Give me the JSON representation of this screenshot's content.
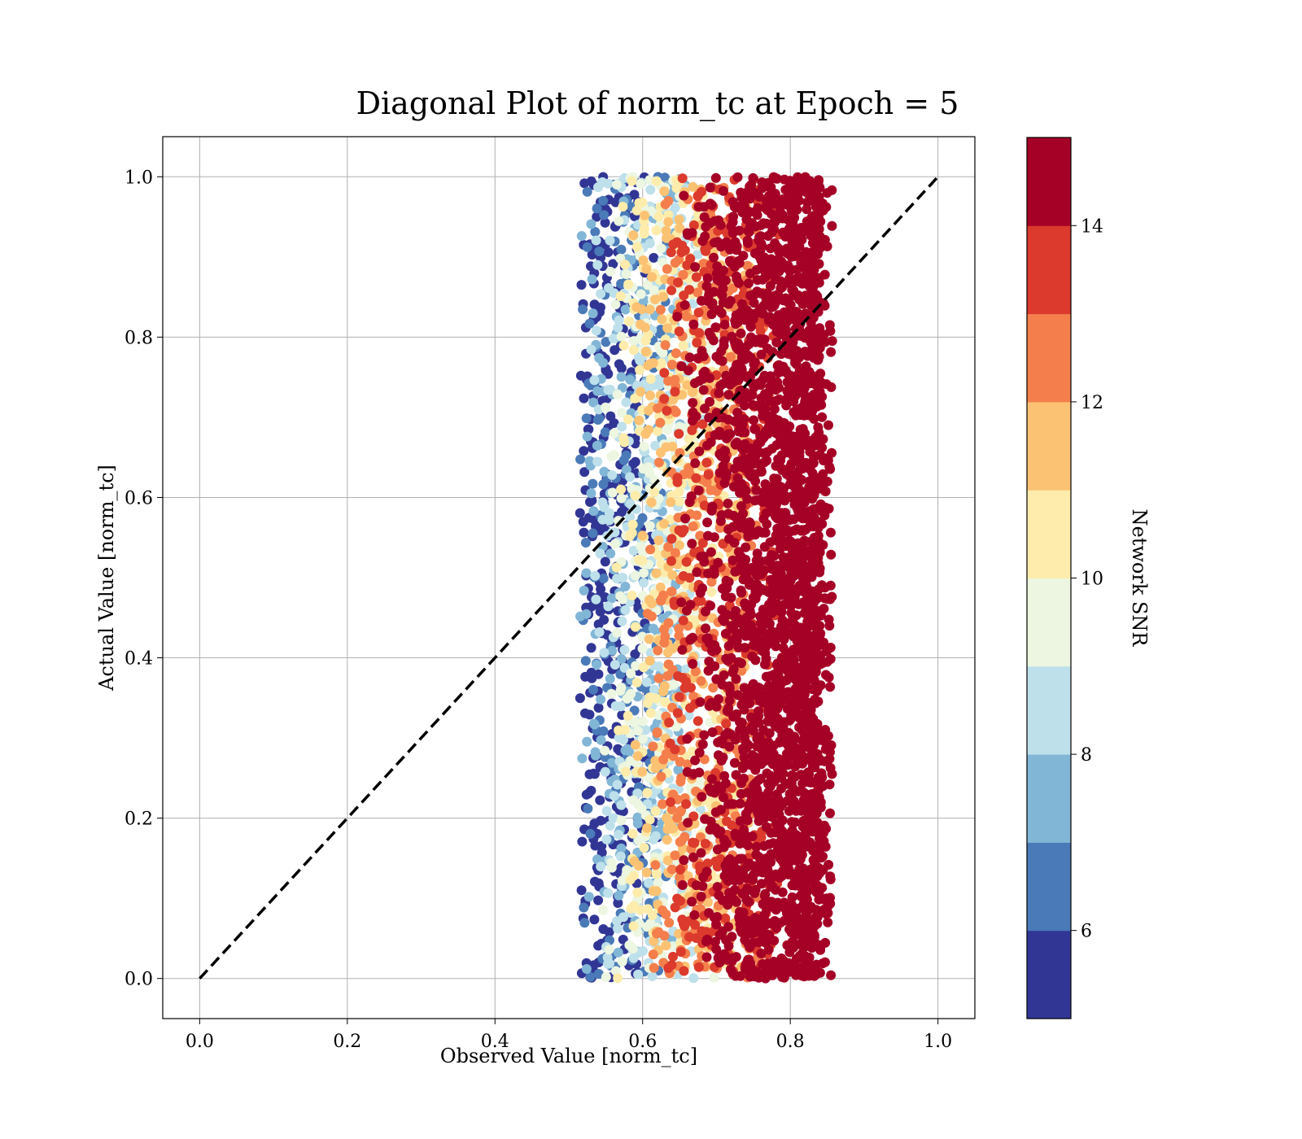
{
  "chart_data": {
    "type": "scatter",
    "title": "Diagonal Plot of norm_tc at Epoch = 5",
    "xlabel": "Observed Value [norm_tc]",
    "ylabel": "Actual Value [norm_tc]",
    "xlim": [
      -0.05,
      1.05
    ],
    "ylim": [
      -0.05,
      1.05
    ],
    "xticks": [
      "0.0",
      "0.2",
      "0.4",
      "0.6",
      "0.8",
      "1.0"
    ],
    "yticks": [
      "0.0",
      "0.2",
      "0.4",
      "0.6",
      "0.8",
      "1.0"
    ],
    "grid": true,
    "reference_line": {
      "x": [
        0,
        1
      ],
      "y": [
        0,
        1
      ],
      "style": "dashed",
      "color": "#000000"
    },
    "scatter_extent": {
      "x": [
        0.51,
        0.86
      ],
      "y": [
        0.0,
        1.0
      ]
    },
    "colorbar": {
      "label": "Network SNR",
      "range": [
        5,
        15
      ],
      "ticks": [
        "6",
        "8",
        "10",
        "12",
        "14"
      ],
      "levels": [
        5,
        6,
        7,
        8,
        9,
        10,
        11,
        12,
        13,
        14,
        15
      ],
      "colors": [
        "#313695",
        "#4a7ab8",
        "#82b6d6",
        "#bde0eb",
        "#ecf6e0",
        "#fdecab",
        "#fcc273",
        "#f47f4c",
        "#db3a2c",
        "#a50026"
      ]
    }
  }
}
